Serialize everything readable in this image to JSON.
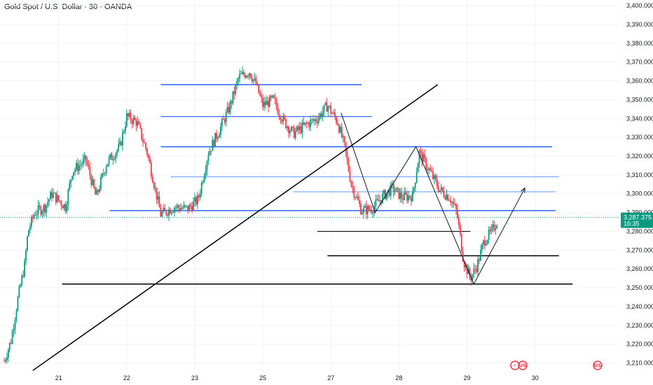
{
  "header": {
    "title": "Gold Spot / U.S. Dollar · 30 · OANDA"
  },
  "colors": {
    "up": "#089981",
    "down": "#f23645",
    "blue_line": "#2962ff",
    "light_blue_line": "#5b9cf6",
    "black_line": "#000000",
    "price_line": "#089981",
    "price_tag_bg": "#089981",
    "event_purple": "#9c27b0",
    "event_red": "#f23645"
  },
  "price_tag": {
    "price": "3,287.375",
    "countdown": "16:35"
  },
  "event_icons": [
    {
      "name": "lightning-event-icon",
      "day": "29",
      "glyph": "⚡"
    },
    {
      "name": "us-flag-event-icon",
      "day": "29",
      "glyph": "US"
    },
    {
      "name": "us-flag-event-icon-2",
      "day": "30",
      "glyph": "US"
    }
  ],
  "chart_data": {
    "type": "candlestick",
    "title": "Gold Spot / U.S. Dollar · 30 · OANDA",
    "ylim": [
      3205,
      3403
    ],
    "y_ticks": [
      3210,
      3220,
      3230,
      3240,
      3250,
      3260,
      3270,
      3280,
      3290,
      3300,
      3310,
      3320,
      3330,
      3340,
      3350,
      3360,
      3370,
      3380,
      3390,
      3400
    ],
    "y_tick_labels": [
      "3,210.000",
      "3,220.000",
      "3,230.000",
      "3,240.000",
      "3,250.000",
      "3,260.000",
      "3,270.000",
      "3,280.000",
      "3,290.000",
      "3,300.000",
      "3,310.000",
      "3,320.000",
      "3,330.000",
      "3,340.000",
      "3,350.000",
      "3,360.000",
      "3,370.000",
      "3,380.000",
      "3,390.000",
      "3,400.000"
    ],
    "x_domain": [
      0,
      9.1
    ],
    "x_ticks": [
      {
        "pos": 0.8,
        "label": "21"
      },
      {
        "pos": 1.8,
        "label": "22"
      },
      {
        "pos": 2.8,
        "label": "23"
      },
      {
        "pos": 3.8,
        "label": "25"
      },
      {
        "pos": 4.8,
        "label": "27"
      },
      {
        "pos": 5.8,
        "label": "28"
      },
      {
        "pos": 6.8,
        "label": "29"
      },
      {
        "pos": 7.8,
        "label": "30"
      }
    ],
    "price_path": [
      [
        0.0,
        3211
      ],
      [
        0.1,
        3222
      ],
      [
        0.2,
        3244
      ],
      [
        0.3,
        3262
      ],
      [
        0.35,
        3280
      ],
      [
        0.45,
        3290
      ],
      [
        0.6,
        3293
      ],
      [
        0.7,
        3300
      ],
      [
        0.9,
        3293
      ],
      [
        1.0,
        3312
      ],
      [
        1.2,
        3318
      ],
      [
        1.35,
        3298
      ],
      [
        1.5,
        3316
      ],
      [
        1.7,
        3325
      ],
      [
        1.8,
        3341
      ],
      [
        1.95,
        3338
      ],
      [
        2.1,
        3322
      ],
      [
        2.3,
        3289
      ],
      [
        2.5,
        3293
      ],
      [
        2.7,
        3292
      ],
      [
        2.85,
        3297
      ],
      [
        3.0,
        3322
      ],
      [
        3.15,
        3333
      ],
      [
        3.3,
        3345
      ],
      [
        3.45,
        3362
      ],
      [
        3.6,
        3365
      ],
      [
        3.7,
        3358
      ],
      [
        3.8,
        3347
      ],
      [
        3.95,
        3350
      ],
      [
        4.1,
        3339
      ],
      [
        4.25,
        3332
      ],
      [
        4.45,
        3337
      ],
      [
        4.6,
        3340
      ],
      [
        4.75,
        3347
      ],
      [
        4.9,
        3338
      ],
      [
        5.0,
        3325
      ],
      [
        5.1,
        3305
      ],
      [
        5.25,
        3291
      ],
      [
        5.4,
        3292
      ],
      [
        5.55,
        3298
      ],
      [
        5.7,
        3303
      ],
      [
        5.85,
        3298
      ],
      [
        6.0,
        3299
      ],
      [
        6.1,
        3322
      ],
      [
        6.25,
        3312
      ],
      [
        6.4,
        3302
      ],
      [
        6.55,
        3298
      ],
      [
        6.65,
        3290
      ],
      [
        6.75,
        3264
      ],
      [
        6.85,
        3255
      ],
      [
        6.95,
        3262
      ],
      [
        7.05,
        3275
      ],
      [
        7.15,
        3279
      ],
      [
        7.25,
        3286
      ]
    ],
    "horizontal_levels": [
      {
        "price": 3358,
        "x1": 2.3,
        "x2": 5.25,
        "color": "blue",
        "width": 1.5
      },
      {
        "price": 3341,
        "x1": 2.3,
        "x2": 5.4,
        "color": "blue",
        "width": 1.2
      },
      {
        "price": 3325,
        "x1": 2.3,
        "x2": 8.05,
        "color": "blue",
        "width": 1.5
      },
      {
        "price": 3309,
        "x1": 2.45,
        "x2": 8.15,
        "color": "light_blue",
        "width": 1
      },
      {
        "price": 3301,
        "x1": 4.25,
        "x2": 8.1,
        "color": "light_blue",
        "width": 1
      },
      {
        "price": 3291,
        "x1": 1.55,
        "x2": 8.1,
        "color": "blue",
        "width": 1.5
      },
      {
        "price": 3280,
        "x1": 4.6,
        "x2": 6.85,
        "color": "black",
        "width": 1
      },
      {
        "price": 3267,
        "x1": 4.75,
        "x2": 8.15,
        "color": "black",
        "width": 1.5
      },
      {
        "price": 3252,
        "x1": 0.85,
        "x2": 8.35,
        "color": "black",
        "width": 1.5
      }
    ],
    "trendline": {
      "from": [
        0.42,
        3206
      ],
      "to": [
        6.37,
        3358
      ]
    },
    "projection_path": [
      [
        4.95,
        3343
      ],
      [
        5.45,
        3290
      ],
      [
        6.05,
        3325
      ],
      [
        6.9,
        3252
      ],
      [
        7.65,
        3303
      ]
    ],
    "current_price": 3287.375
  }
}
